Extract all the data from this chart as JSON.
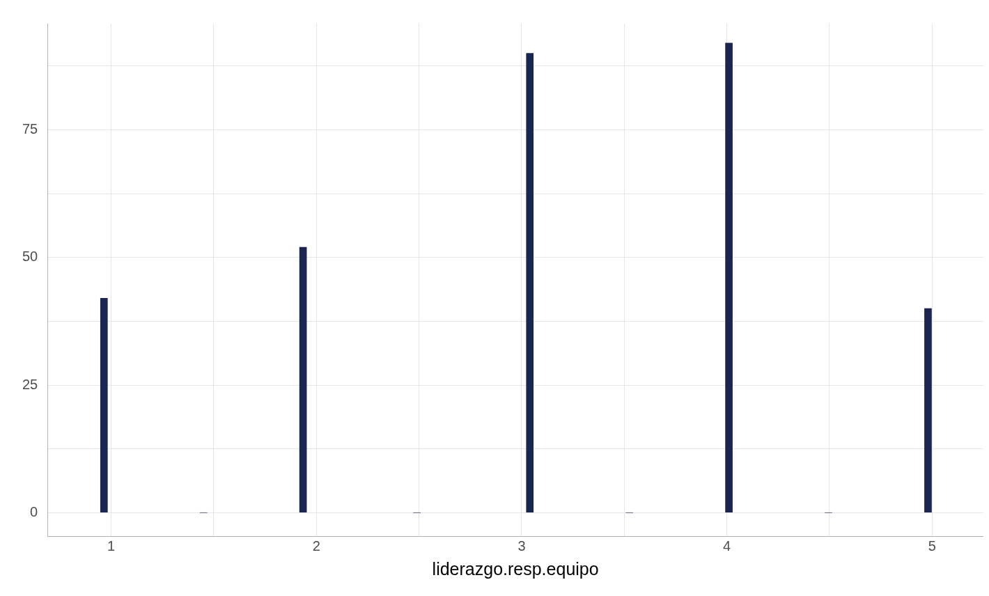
{
  "chart_data": {
    "type": "histogram",
    "xlabel": "liderazgo.resp.equipo",
    "bins": [
      0.9,
      1.03,
      1.87,
      2.0,
      2.98,
      3.1,
      3.95,
      4.07,
      4.92,
      5.04
    ],
    "values": [
      42,
      0,
      52,
      0,
      90,
      0,
      92,
      0,
      40
    ],
    "color": "#1a2550",
    "xlim": [
      0.69,
      5.25
    ],
    "ylim": [
      -4.6,
      95.8
    ],
    "xticks": [
      1,
      {
        "value": 1.5,
        "label": null
      },
      2,
      {
        "value": 2.5,
        "label": null
      },
      3,
      {
        "value": 3.5,
        "label": null
      },
      4,
      {
        "value": 4.5,
        "label": null
      },
      5
    ],
    "yticks": [
      0,
      {
        "value": 12.5,
        "label": null
      },
      25,
      {
        "value": 37.5,
        "label": null
      },
      50,
      {
        "value": 62.5,
        "label": null
      },
      75,
      {
        "value": 87.5,
        "label": null
      }
    ],
    "grid": true
  }
}
